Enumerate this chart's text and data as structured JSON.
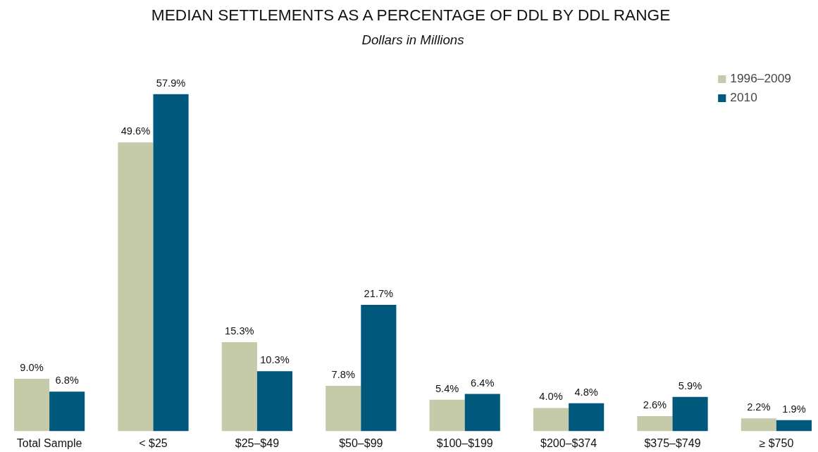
{
  "chart_data": {
    "type": "bar",
    "title": "MEDIAN SETTLEMENTS AS A PERCENTAGE OF DDL BY DDL RANGE",
    "subtitle": "Dollars in Millions",
    "categories": [
      "Total Sample",
      "< $25",
      "$25–$49",
      "$50–$99",
      "$100–$199",
      "$200–$374",
      "$375–$749",
      "≥ $750"
    ],
    "series": [
      {
        "name": "1996–2009",
        "color": "#c5cba8",
        "values": [
          9.0,
          49.6,
          15.3,
          7.8,
          5.4,
          4.0,
          2.6,
          2.2
        ],
        "value_labels": [
          "9.0%",
          "49.6%",
          "15.3%",
          "7.8%",
          "5.4%",
          "4.0%",
          "2.6%",
          "2.2%"
        ]
      },
      {
        "name": "2010",
        "color": "#00587c",
        "values": [
          6.8,
          57.9,
          10.3,
          21.7,
          6.4,
          4.8,
          5.9,
          1.9
        ],
        "value_labels": [
          "6.8%",
          "57.9%",
          "10.3%",
          "21.7%",
          "6.4%",
          "4.8%",
          "5.9%",
          "1.9%"
        ]
      }
    ],
    "grid": false,
    "legend": "top right"
  }
}
